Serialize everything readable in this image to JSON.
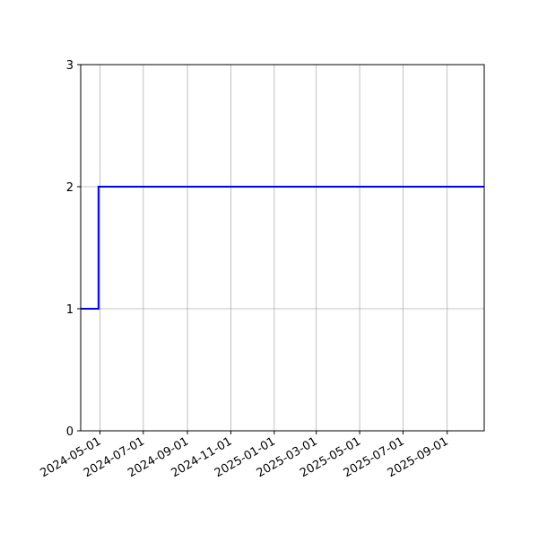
{
  "chart_data": {
    "type": "line",
    "step": "post",
    "title": "",
    "xlabel": "",
    "ylabel": "",
    "x_type": "date",
    "xlim": [
      "2024-04-04",
      "2025-10-23"
    ],
    "ylim": [
      0,
      3
    ],
    "grid": true,
    "x_ticks": [
      "2024-05-01",
      "2024-07-01",
      "2024-09-01",
      "2024-11-01",
      "2025-01-01",
      "2025-03-01",
      "2025-05-01",
      "2025-07-01",
      "2025-09-01"
    ],
    "y_ticks": [
      0,
      1,
      2,
      3
    ],
    "series": [
      {
        "color": "#0000ff",
        "x": [
          "2024-04-04",
          "2024-04-29",
          "2025-10-23"
        ],
        "y": [
          1,
          2,
          2
        ]
      }
    ]
  }
}
